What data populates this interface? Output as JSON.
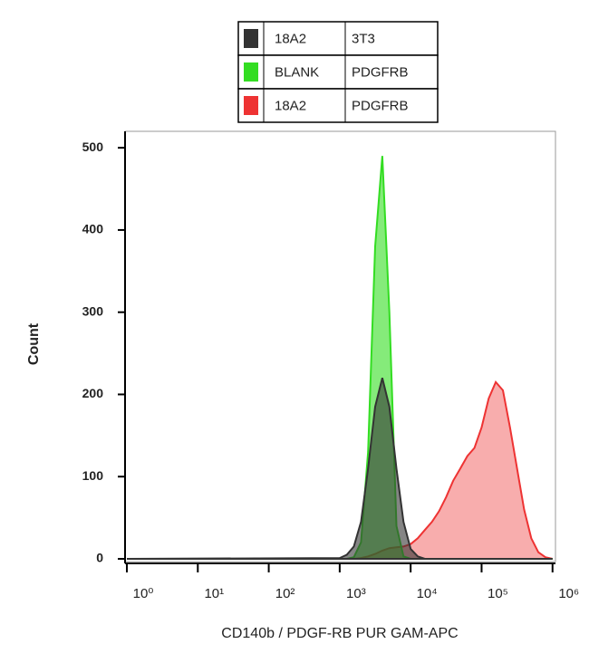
{
  "chart_data": {
    "type": "histogram-overlay",
    "x_label": "CD140b / PDGF-RB PUR GAM-APC",
    "y_label": "Count",
    "x_log": true,
    "xlim": [
      1,
      1100000
    ],
    "ylim": [
      0,
      520
    ],
    "xticks": [
      {
        "value": 1,
        "label": "10⁰"
      },
      {
        "value": 10,
        "label": "10¹"
      },
      {
        "value": 100,
        "label": "10²"
      },
      {
        "value": 1000,
        "label": "10³"
      },
      {
        "value": 10000,
        "label": "10⁴"
      },
      {
        "value": 100000,
        "label": "10⁵"
      },
      {
        "value": 1000000,
        "label": "10⁶"
      }
    ],
    "yticks": [
      0,
      100,
      200,
      300,
      400,
      500
    ],
    "x": [
      1,
      1000,
      1259,
      1585,
      1995,
      2512,
      3162,
      3981,
      5012,
      6310,
      7943,
      10000,
      12589,
      15849,
      19953,
      25119,
      31623,
      39811,
      50119,
      63096,
      79433,
      100000,
      125893,
      158489,
      199526,
      251189,
      316228,
      398107,
      501187,
      630957,
      794328,
      1000000
    ],
    "series": [
      {
        "name": "18A2",
        "target": "PDGFRB",
        "color": "#ee3333",
        "values": [
          0,
          0,
          0,
          0,
          1,
          3,
          6,
          10,
          13,
          14,
          15,
          18,
          25,
          35,
          45,
          58,
          75,
          95,
          110,
          125,
          135,
          160,
          195,
          215,
          205,
          160,
          110,
          60,
          25,
          8,
          2,
          0
        ]
      },
      {
        "name": "BLANK",
        "target": "PDGFRB",
        "color": "#33dd22",
        "values": [
          0,
          0,
          0,
          2,
          20,
          130,
          380,
          490,
          300,
          40,
          3,
          0,
          0,
          0,
          0,
          0,
          0,
          0,
          0,
          0,
          0,
          0,
          0,
          0,
          0,
          0,
          0,
          0,
          0,
          0,
          0,
          0
        ]
      },
      {
        "name": "18A2",
        "target": "3T3",
        "color": "#333333",
        "values": [
          0,
          1,
          5,
          15,
          45,
          110,
          185,
          220,
          185,
          110,
          45,
          12,
          3,
          0,
          0,
          0,
          0,
          0,
          0,
          0,
          0,
          0,
          0,
          0,
          0,
          0,
          0,
          0,
          0,
          0,
          0,
          0
        ]
      }
    ],
    "legend_order": [
      2,
      1,
      0
    ]
  }
}
